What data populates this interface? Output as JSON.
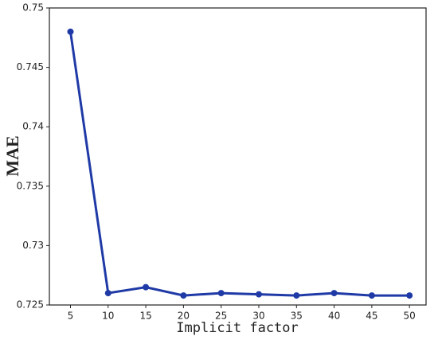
{
  "chart_data": {
    "type": "line",
    "x_label": "Implicit factor",
    "y_label": "MAE",
    "x": [
      5,
      10,
      15,
      20,
      25,
      30,
      35,
      40,
      45,
      50
    ],
    "series": [
      {
        "color": "#1f3aa6",
        "values": [
          0.748,
          0.726,
          0.7265,
          0.7258,
          0.726,
          0.7259,
          0.7258,
          0.726,
          0.7258,
          0.7258
        ]
      }
    ],
    "xlim": [
      2.2,
      52.2
    ],
    "xticks": [
      5,
      10,
      15,
      20,
      25,
      30,
      35,
      40,
      45,
      50
    ],
    "ylim": [
      0.725,
      0.75
    ],
    "yticks": [
      0.725,
      0.73,
      0.735,
      0.74,
      0.745,
      0.75
    ],
    "grid": false
  }
}
